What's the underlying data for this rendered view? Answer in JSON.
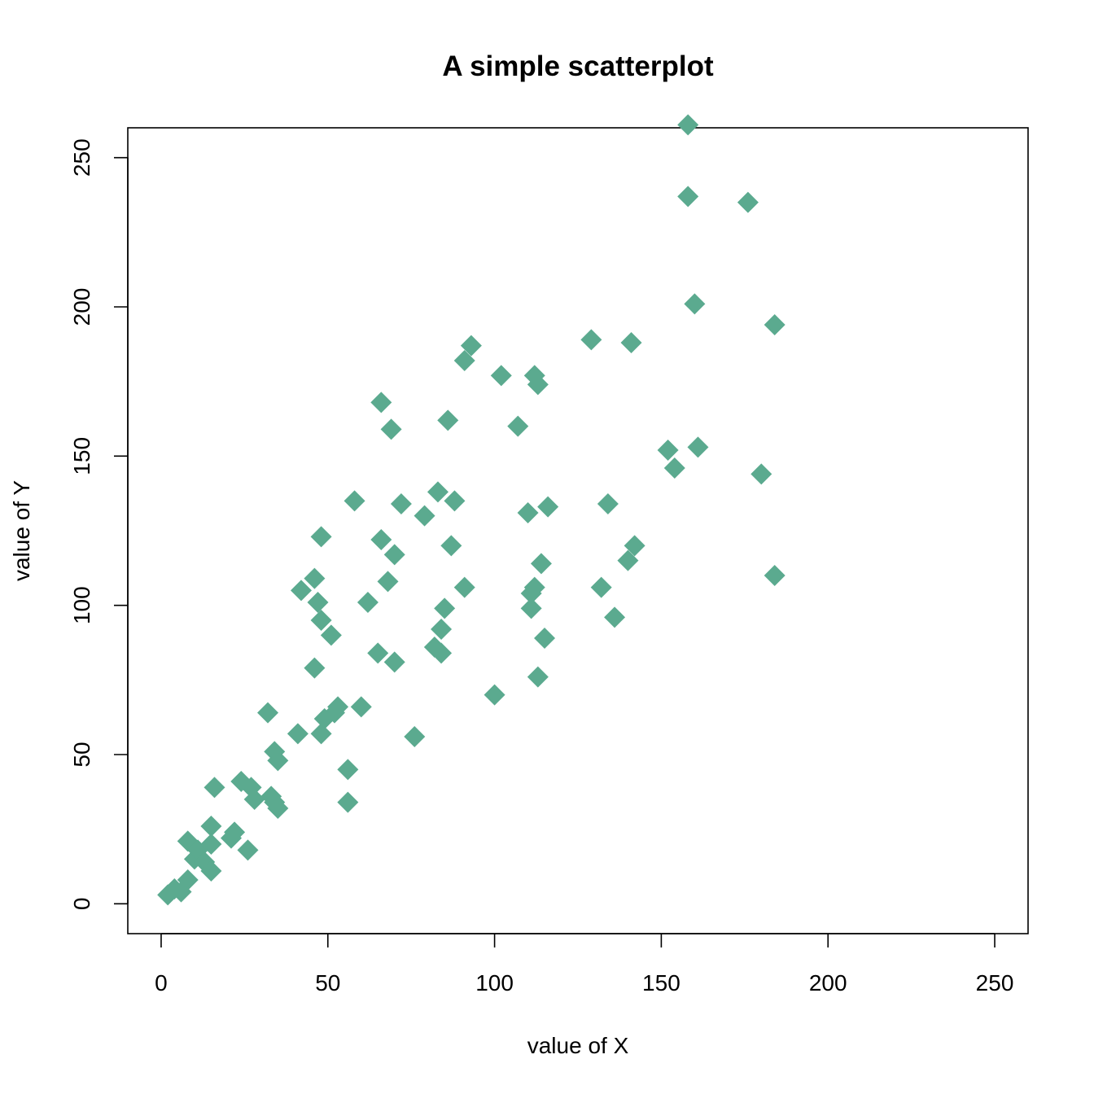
{
  "chart_data": {
    "type": "scatter",
    "title": "A simple scatterplot",
    "xlabel": "value of X",
    "ylabel": "value of Y",
    "xlim": [
      -10,
      260
    ],
    "ylim": [
      -10,
      260
    ],
    "xticks": [
      0,
      50,
      100,
      150,
      200,
      250
    ],
    "yticks": [
      0,
      50,
      100,
      150,
      200,
      250
    ],
    "grid": false,
    "marker": "diamond",
    "color": "#5BAA8F",
    "points": [
      {
        "x": 2,
        "y": 3
      },
      {
        "x": 4,
        "y": 5
      },
      {
        "x": 6,
        "y": 4
      },
      {
        "x": 8,
        "y": 8
      },
      {
        "x": 8,
        "y": 21
      },
      {
        "x": 10,
        "y": 15
      },
      {
        "x": 11,
        "y": 18
      },
      {
        "x": 13,
        "y": 14
      },
      {
        "x": 15,
        "y": 11
      },
      {
        "x": 15,
        "y": 26
      },
      {
        "x": 15,
        "y": 20
      },
      {
        "x": 16,
        "y": 39
      },
      {
        "x": 21,
        "y": 22
      },
      {
        "x": 22,
        "y": 24
      },
      {
        "x": 24,
        "y": 41
      },
      {
        "x": 26,
        "y": 18
      },
      {
        "x": 27,
        "y": 39
      },
      {
        "x": 28,
        "y": 35
      },
      {
        "x": 32,
        "y": 64
      },
      {
        "x": 33,
        "y": 36
      },
      {
        "x": 34,
        "y": 34
      },
      {
        "x": 34,
        "y": 51
      },
      {
        "x": 35,
        "y": 48
      },
      {
        "x": 35,
        "y": 32
      },
      {
        "x": 41,
        "y": 57
      },
      {
        "x": 42,
        "y": 105
      },
      {
        "x": 46,
        "y": 79
      },
      {
        "x": 46,
        "y": 109
      },
      {
        "x": 47,
        "y": 101
      },
      {
        "x": 48,
        "y": 95
      },
      {
        "x": 48,
        "y": 123
      },
      {
        "x": 48,
        "y": 57
      },
      {
        "x": 49,
        "y": 62
      },
      {
        "x": 51,
        "y": 90
      },
      {
        "x": 52,
        "y": 64
      },
      {
        "x": 53,
        "y": 66
      },
      {
        "x": 56,
        "y": 45
      },
      {
        "x": 56,
        "y": 34
      },
      {
        "x": 58,
        "y": 135
      },
      {
        "x": 60,
        "y": 66
      },
      {
        "x": 62,
        "y": 101
      },
      {
        "x": 65,
        "y": 84
      },
      {
        "x": 66,
        "y": 122
      },
      {
        "x": 66,
        "y": 168
      },
      {
        "x": 68,
        "y": 108
      },
      {
        "x": 69,
        "y": 159
      },
      {
        "x": 70,
        "y": 81
      },
      {
        "x": 70,
        "y": 117
      },
      {
        "x": 72,
        "y": 134
      },
      {
        "x": 76,
        "y": 56
      },
      {
        "x": 79,
        "y": 130
      },
      {
        "x": 82,
        "y": 86
      },
      {
        "x": 83,
        "y": 138
      },
      {
        "x": 84,
        "y": 84
      },
      {
        "x": 84,
        "y": 92
      },
      {
        "x": 85,
        "y": 99
      },
      {
        "x": 86,
        "y": 162
      },
      {
        "x": 87,
        "y": 120
      },
      {
        "x": 88,
        "y": 135
      },
      {
        "x": 91,
        "y": 182
      },
      {
        "x": 91,
        "y": 106
      },
      {
        "x": 93,
        "y": 187
      },
      {
        "x": 100,
        "y": 70
      },
      {
        "x": 102,
        "y": 177
      },
      {
        "x": 107,
        "y": 160
      },
      {
        "x": 110,
        "y": 131
      },
      {
        "x": 111,
        "y": 104
      },
      {
        "x": 111,
        "y": 99
      },
      {
        "x": 112,
        "y": 106
      },
      {
        "x": 112,
        "y": 177
      },
      {
        "x": 113,
        "y": 174
      },
      {
        "x": 113,
        "y": 76
      },
      {
        "x": 114,
        "y": 114
      },
      {
        "x": 115,
        "y": 89
      },
      {
        "x": 116,
        "y": 133
      },
      {
        "x": 129,
        "y": 189
      },
      {
        "x": 132,
        "y": 106
      },
      {
        "x": 134,
        "y": 134
      },
      {
        "x": 136,
        "y": 96
      },
      {
        "x": 140,
        "y": 115
      },
      {
        "x": 141,
        "y": 188
      },
      {
        "x": 142,
        "y": 120
      },
      {
        "x": 152,
        "y": 152
      },
      {
        "x": 154,
        "y": 146
      },
      {
        "x": 158,
        "y": 261
      },
      {
        "x": 158,
        "y": 237
      },
      {
        "x": 160,
        "y": 201
      },
      {
        "x": 161,
        "y": 153
      },
      {
        "x": 176,
        "y": 235
      },
      {
        "x": 180,
        "y": 144
      },
      {
        "x": 184,
        "y": 110
      },
      {
        "x": 184,
        "y": 194
      }
    ]
  }
}
